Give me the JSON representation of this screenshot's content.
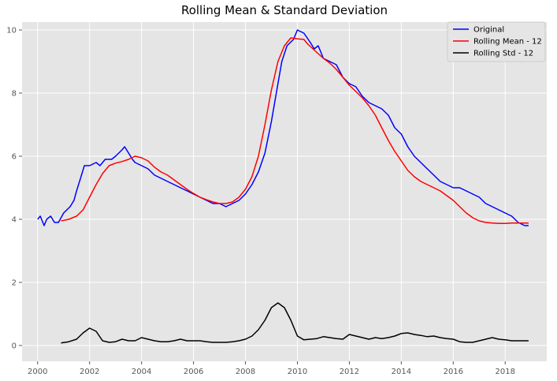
{
  "chart_data": {
    "type": "line",
    "title": "Rolling Mean & Standard Deviation",
    "xlabel": "",
    "ylabel": "",
    "xlim": [
      1999.4,
      2019.6
    ],
    "ylim": [
      -0.5,
      10.25
    ],
    "x_ticks": [
      2000,
      2002,
      2004,
      2006,
      2008,
      2010,
      2012,
      2014,
      2016,
      2018
    ],
    "y_ticks": [
      0,
      2,
      4,
      6,
      8,
      10
    ],
    "x_tick_labels": [
      "2000",
      "2002",
      "2004",
      "2006",
      "2008",
      "2010",
      "2012",
      "2014",
      "2016",
      "2018"
    ],
    "y_tick_labels": [
      "0",
      "2",
      "4",
      "6",
      "8",
      "10"
    ],
    "grid": true,
    "legend_position": "top-right",
    "series": [
      {
        "name": "Original",
        "color": "#0000ff",
        "x": [
          2000.0,
          2000.1,
          2000.25,
          2000.35,
          2000.5,
          2000.65,
          2000.8,
          2001.0,
          2001.25,
          2001.4,
          2001.5,
          2001.65,
          2001.8,
          2002.0,
          2002.25,
          2002.4,
          2002.6,
          2002.85,
          2003.0,
          2003.25,
          2003.35,
          2003.5,
          2003.65,
          2003.75,
          2004.0,
          2004.25,
          2004.5,
          2004.75,
          2005.0,
          2005.25,
          2005.5,
          2005.75,
          2006.0,
          2006.25,
          2006.5,
          2006.75,
          2007.0,
          2007.25,
          2007.5,
          2007.75,
          2008.0,
          2008.25,
          2008.5,
          2008.75,
          2009.0,
          2009.25,
          2009.4,
          2009.6,
          2009.85,
          2010.0,
          2010.25,
          2010.5,
          2010.65,
          2010.8,
          2011.0,
          2011.25,
          2011.5,
          2011.75,
          2012.0,
          2012.25,
          2012.5,
          2012.75,
          2013.0,
          2013.25,
          2013.5,
          2013.75,
          2014.0,
          2014.25,
          2014.5,
          2014.75,
          2015.0,
          2015.25,
          2015.5,
          2015.75,
          2016.0,
          2016.25,
          2016.5,
          2016.75,
          2017.0,
          2017.25,
          2017.5,
          2017.75,
          2018.0,
          2018.25,
          2018.5,
          2018.75,
          2018.9
        ],
        "values": [
          4.0,
          4.1,
          3.8,
          4.0,
          4.1,
          3.9,
          3.9,
          4.2,
          4.4,
          4.6,
          4.9,
          5.3,
          5.7,
          5.7,
          5.8,
          5.7,
          5.9,
          5.9,
          6.0,
          6.2,
          6.3,
          6.1,
          5.9,
          5.8,
          5.7,
          5.6,
          5.4,
          5.3,
          5.2,
          5.1,
          5.0,
          4.9,
          4.8,
          4.7,
          4.6,
          4.5,
          4.5,
          4.4,
          4.5,
          4.6,
          4.8,
          5.1,
          5.5,
          6.1,
          7.1,
          8.3,
          9.0,
          9.5,
          9.7,
          10.0,
          9.9,
          9.6,
          9.4,
          9.5,
          9.1,
          9.0,
          8.9,
          8.5,
          8.3,
          8.2,
          7.9,
          7.7,
          7.6,
          7.5,
          7.3,
          6.9,
          6.7,
          6.3,
          6.0,
          5.8,
          5.6,
          5.4,
          5.2,
          5.1,
          5.0,
          5.0,
          4.9,
          4.8,
          4.7,
          4.5,
          4.4,
          4.3,
          4.2,
          4.1,
          3.9,
          3.8,
          3.8
        ]
      },
      {
        "name": "Rolling Mean - 12",
        "color": "#ff0000",
        "x": [
          2000.9,
          2001.2,
          2001.5,
          2001.75,
          2002.0,
          2002.25,
          2002.5,
          2002.75,
          2003.0,
          2003.25,
          2003.5,
          2003.75,
          2004.0,
          2004.25,
          2004.5,
          2004.75,
          2005.0,
          2005.25,
          2005.5,
          2005.75,
          2006.0,
          2006.25,
          2006.5,
          2006.75,
          2007.0,
          2007.25,
          2007.5,
          2007.75,
          2008.0,
          2008.25,
          2008.5,
          2008.75,
          2009.0,
          2009.25,
          2009.5,
          2009.75,
          2010.0,
          2010.25,
          2010.4,
          2010.6,
          2010.8,
          2011.0,
          2011.25,
          2011.5,
          2011.75,
          2012.0,
          2012.25,
          2012.5,
          2012.75,
          2013.0,
          2013.25,
          2013.5,
          2013.75,
          2014.0,
          2014.25,
          2014.5,
          2014.75,
          2015.0,
          2015.25,
          2015.5,
          2015.75,
          2016.0,
          2016.25,
          2016.5,
          2016.75,
          2017.0,
          2017.25,
          2017.5,
          2017.75,
          2018.0,
          2018.25,
          2018.5,
          2018.75,
          2018.9
        ],
        "values": [
          3.95,
          4.0,
          4.1,
          4.3,
          4.7,
          5.1,
          5.45,
          5.7,
          5.78,
          5.83,
          5.9,
          6.0,
          5.95,
          5.85,
          5.65,
          5.5,
          5.4,
          5.25,
          5.1,
          4.95,
          4.82,
          4.7,
          4.62,
          4.55,
          4.5,
          4.5,
          4.55,
          4.7,
          4.95,
          5.35,
          6.0,
          7.0,
          8.1,
          9.0,
          9.5,
          9.75,
          9.72,
          9.7,
          9.55,
          9.4,
          9.25,
          9.1,
          8.95,
          8.75,
          8.5,
          8.25,
          8.05,
          7.85,
          7.6,
          7.3,
          6.9,
          6.5,
          6.15,
          5.85,
          5.55,
          5.35,
          5.2,
          5.1,
          5.0,
          4.9,
          4.75,
          4.6,
          4.4,
          4.2,
          4.05,
          3.95,
          3.9,
          3.88,
          3.87,
          3.87,
          3.88,
          3.88,
          3.88,
          3.88
        ]
      },
      {
        "name": "Rolling Std - 12",
        "color": "#000000",
        "x": [
          2000.9,
          2001.2,
          2001.5,
          2001.75,
          2002.0,
          2002.25,
          2002.5,
          2002.75,
          2003.0,
          2003.25,
          2003.5,
          2003.75,
          2004.0,
          2004.25,
          2004.5,
          2004.75,
          2005.0,
          2005.25,
          2005.5,
          2005.75,
          2006.0,
          2006.25,
          2006.5,
          2006.75,
          2007.0,
          2007.25,
          2007.5,
          2007.75,
          2008.0,
          2008.25,
          2008.5,
          2008.75,
          2009.0,
          2009.25,
          2009.5,
          2009.75,
          2010.0,
          2010.25,
          2010.5,
          2010.75,
          2011.0,
          2011.25,
          2011.5,
          2011.75,
          2012.0,
          2012.25,
          2012.5,
          2012.75,
          2013.0,
          2013.25,
          2013.5,
          2013.75,
          2014.0,
          2014.25,
          2014.5,
          2014.75,
          2015.0,
          2015.25,
          2015.5,
          2015.75,
          2016.0,
          2016.25,
          2016.5,
          2016.75,
          2017.0,
          2017.25,
          2017.5,
          2017.75,
          2018.0,
          2018.25,
          2018.5,
          2018.75,
          2018.9
        ],
        "values": [
          0.08,
          0.12,
          0.2,
          0.4,
          0.55,
          0.45,
          0.15,
          0.1,
          0.12,
          0.2,
          0.15,
          0.15,
          0.25,
          0.2,
          0.15,
          0.12,
          0.12,
          0.15,
          0.2,
          0.15,
          0.15,
          0.15,
          0.12,
          0.1,
          0.1,
          0.1,
          0.12,
          0.15,
          0.2,
          0.3,
          0.5,
          0.8,
          1.2,
          1.35,
          1.2,
          0.8,
          0.3,
          0.18,
          0.2,
          0.22,
          0.28,
          0.25,
          0.22,
          0.2,
          0.35,
          0.3,
          0.25,
          0.2,
          0.25,
          0.22,
          0.25,
          0.3,
          0.38,
          0.4,
          0.35,
          0.32,
          0.28,
          0.3,
          0.25,
          0.22,
          0.2,
          0.12,
          0.1,
          0.1,
          0.15,
          0.2,
          0.25,
          0.2,
          0.18,
          0.15,
          0.15,
          0.15,
          0.15
        ]
      }
    ]
  }
}
